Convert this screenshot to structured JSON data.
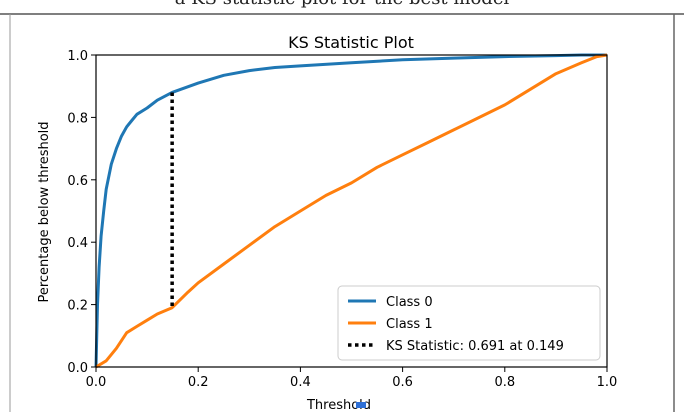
{
  "page": {
    "cropped_caption": "a KS statistic plot for the best model"
  },
  "chart_data": {
    "type": "line",
    "title": "KS Statistic Plot",
    "xlabel": "Threshold",
    "ylabel": "Percentage below threshold",
    "xlim": [
      0.0,
      1.0
    ],
    "ylim": [
      0.0,
      1.0
    ],
    "xticks": [
      "0.0",
      "0.2",
      "0.4",
      "0.6",
      "0.8",
      "1.0"
    ],
    "yticks": [
      "0.0",
      "0.2",
      "0.4",
      "0.6",
      "0.8",
      "1.0"
    ],
    "grid": false,
    "legend_position": "lower-right",
    "series": [
      {
        "name": "Class 0",
        "color": "#1f77b4",
        "x": [
          0.0,
          0.003,
          0.006,
          0.01,
          0.015,
          0.02,
          0.03,
          0.04,
          0.05,
          0.06,
          0.07,
          0.08,
          0.1,
          0.12,
          0.149,
          0.2,
          0.25,
          0.3,
          0.35,
          0.4,
          0.5,
          0.6,
          0.7,
          0.8,
          0.9,
          0.95,
          1.0
        ],
        "values": [
          0.0,
          0.2,
          0.32,
          0.42,
          0.5,
          0.57,
          0.65,
          0.7,
          0.74,
          0.77,
          0.79,
          0.81,
          0.83,
          0.855,
          0.88,
          0.91,
          0.935,
          0.95,
          0.96,
          0.965,
          0.975,
          0.985,
          0.99,
          0.995,
          0.998,
          1.0,
          1.0
        ]
      },
      {
        "name": "Class 1",
        "color": "#ff7f0e",
        "x": [
          0.0,
          0.02,
          0.04,
          0.06,
          0.08,
          0.1,
          0.12,
          0.149,
          0.18,
          0.2,
          0.25,
          0.3,
          0.35,
          0.4,
          0.45,
          0.5,
          0.55,
          0.6,
          0.65,
          0.7,
          0.75,
          0.8,
          0.85,
          0.9,
          0.95,
          0.98,
          1.0
        ],
        "values": [
          0.0,
          0.02,
          0.06,
          0.11,
          0.13,
          0.15,
          0.17,
          0.19,
          0.24,
          0.27,
          0.33,
          0.39,
          0.45,
          0.5,
          0.55,
          0.59,
          0.64,
          0.68,
          0.72,
          0.76,
          0.8,
          0.84,
          0.89,
          0.94,
          0.975,
          0.995,
          1.0
        ]
      }
    ],
    "ks_statistic": {
      "label": "KS Statistic: 0.691 at 0.149",
      "threshold": 0.149,
      "y_low": 0.19,
      "y_high": 0.88,
      "color": "#000000"
    }
  }
}
